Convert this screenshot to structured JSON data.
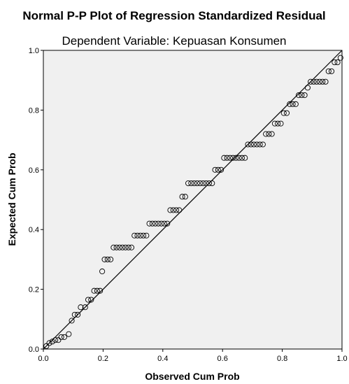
{
  "chart_data": {
    "type": "scatter",
    "title": "Normal P-P Plot of Regression Standardized Residual",
    "subtitle": "Dependent Variable: Kepuasan Konsumen",
    "xlabel": "Observed Cum Prob",
    "ylabel": "Expected Cum Prob",
    "xlim": [
      0,
      1
    ],
    "ylim": [
      0,
      1
    ],
    "xticks": [
      "0.0",
      "0.2",
      "0.4",
      "0.6",
      "0.8",
      "1.0"
    ],
    "yticks": [
      "0.0",
      "0.2",
      "0.4",
      "0.6",
      "0.8",
      "1.0"
    ],
    "grid": false,
    "background": "#f0f0f0",
    "marker": "open-circle",
    "reference_line": {
      "from": [
        0,
        0
      ],
      "to": [
        1,
        1
      ]
    },
    "points": [
      [
        0.01,
        0.01
      ],
      [
        0.02,
        0.02
      ],
      [
        0.03,
        0.025
      ],
      [
        0.04,
        0.03
      ],
      [
        0.05,
        0.03
      ],
      [
        0.06,
        0.04
      ],
      [
        0.07,
        0.04
      ],
      [
        0.085,
        0.05
      ],
      [
        0.095,
        0.095
      ],
      [
        0.105,
        0.115
      ],
      [
        0.115,
        0.115
      ],
      [
        0.125,
        0.14
      ],
      [
        0.14,
        0.14
      ],
      [
        0.15,
        0.165
      ],
      [
        0.16,
        0.165
      ],
      [
        0.17,
        0.195
      ],
      [
        0.18,
        0.195
      ],
      [
        0.19,
        0.195
      ],
      [
        0.197,
        0.26
      ],
      [
        0.205,
        0.3
      ],
      [
        0.215,
        0.3
      ],
      [
        0.225,
        0.3
      ],
      [
        0.235,
        0.34
      ],
      [
        0.245,
        0.34
      ],
      [
        0.255,
        0.34
      ],
      [
        0.265,
        0.34
      ],
      [
        0.275,
        0.34
      ],
      [
        0.285,
        0.34
      ],
      [
        0.295,
        0.34
      ],
      [
        0.305,
        0.38
      ],
      [
        0.315,
        0.38
      ],
      [
        0.325,
        0.38
      ],
      [
        0.335,
        0.38
      ],
      [
        0.345,
        0.38
      ],
      [
        0.355,
        0.42
      ],
      [
        0.365,
        0.42
      ],
      [
        0.375,
        0.42
      ],
      [
        0.385,
        0.42
      ],
      [
        0.395,
        0.42
      ],
      [
        0.405,
        0.42
      ],
      [
        0.415,
        0.42
      ],
      [
        0.425,
        0.465
      ],
      [
        0.435,
        0.465
      ],
      [
        0.445,
        0.465
      ],
      [
        0.455,
        0.465
      ],
      [
        0.465,
        0.51
      ],
      [
        0.475,
        0.51
      ],
      [
        0.485,
        0.555
      ],
      [
        0.495,
        0.555
      ],
      [
        0.505,
        0.555
      ],
      [
        0.515,
        0.555
      ],
      [
        0.525,
        0.555
      ],
      [
        0.535,
        0.555
      ],
      [
        0.545,
        0.555
      ],
      [
        0.555,
        0.555
      ],
      [
        0.565,
        0.555
      ],
      [
        0.575,
        0.6
      ],
      [
        0.585,
        0.6
      ],
      [
        0.595,
        0.6
      ],
      [
        0.605,
        0.64
      ],
      [
        0.615,
        0.64
      ],
      [
        0.625,
        0.64
      ],
      [
        0.635,
        0.64
      ],
      [
        0.645,
        0.64
      ],
      [
        0.655,
        0.64
      ],
      [
        0.665,
        0.64
      ],
      [
        0.675,
        0.64
      ],
      [
        0.685,
        0.685
      ],
      [
        0.695,
        0.685
      ],
      [
        0.705,
        0.685
      ],
      [
        0.715,
        0.685
      ],
      [
        0.725,
        0.685
      ],
      [
        0.735,
        0.685
      ],
      [
        0.745,
        0.72
      ],
      [
        0.755,
        0.72
      ],
      [
        0.765,
        0.72
      ],
      [
        0.775,
        0.755
      ],
      [
        0.785,
        0.755
      ],
      [
        0.795,
        0.755
      ],
      [
        0.805,
        0.79
      ],
      [
        0.815,
        0.79
      ],
      [
        0.825,
        0.82
      ],
      [
        0.835,
        0.82
      ],
      [
        0.845,
        0.82
      ],
      [
        0.855,
        0.85
      ],
      [
        0.865,
        0.85
      ],
      [
        0.875,
        0.85
      ],
      [
        0.885,
        0.875
      ],
      [
        0.895,
        0.895
      ],
      [
        0.905,
        0.895
      ],
      [
        0.915,
        0.895
      ],
      [
        0.925,
        0.895
      ],
      [
        0.935,
        0.895
      ],
      [
        0.945,
        0.895
      ],
      [
        0.955,
        0.93
      ],
      [
        0.965,
        0.93
      ],
      [
        0.975,
        0.96
      ],
      [
        0.985,
        0.96
      ],
      [
        0.995,
        0.975
      ]
    ]
  }
}
